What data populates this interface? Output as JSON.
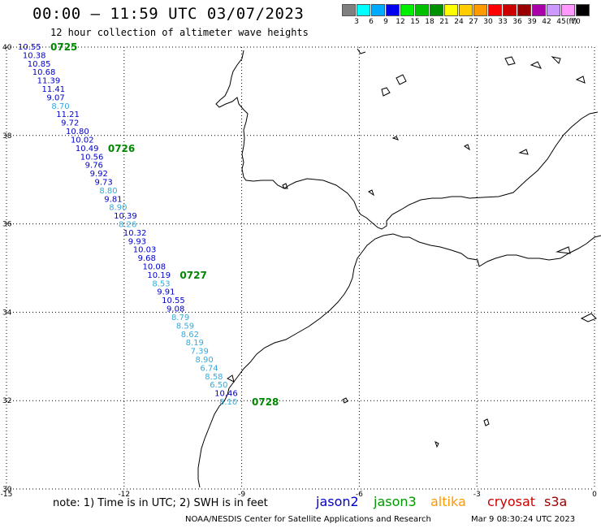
{
  "header": {
    "title": "00:00 – 11:59 UTC 03/07/2023",
    "subtitle": "12 hour collection of altimeter wave heights"
  },
  "legend": {
    "unit": "(ft)",
    "bins": [
      {
        "label": "3",
        "color": "#7f7f7f"
      },
      {
        "label": "6",
        "color": "#00ffff"
      },
      {
        "label": "9",
        "color": "#00aaff"
      },
      {
        "label": "12",
        "color": "#0000ee"
      },
      {
        "label": "15",
        "color": "#00ee00"
      },
      {
        "label": "18",
        "color": "#00c000"
      },
      {
        "label": "21",
        "color": "#009000"
      },
      {
        "label": "24",
        "color": "#ffff00"
      },
      {
        "label": "27",
        "color": "#ffcc00"
      },
      {
        "label": "30",
        "color": "#ff9900"
      },
      {
        "label": "33",
        "color": "#ff0000"
      },
      {
        "label": "36",
        "color": "#cc0000"
      },
      {
        "label": "39",
        "color": "#990000"
      },
      {
        "label": "42",
        "color": "#aa00aa"
      },
      {
        "label": "45",
        "color": "#cc99ff"
      },
      {
        "label": "70",
        "color": "#ff99ff"
      },
      {
        "label": "",
        "color": "#000000"
      }
    ]
  },
  "map_extent": {
    "lon_min": -15,
    "lon_max": 0,
    "lat_min": 30,
    "lat_max": 40
  },
  "axes": {
    "lon_ticks": [
      "-15",
      "-12",
      "-9",
      "-6",
      "-3",
      "0"
    ],
    "lat_ticks": [
      "30",
      "32",
      "34",
      "36",
      "38",
      "40"
    ]
  },
  "track": {
    "wave_heights": [
      {
        "v": "10.55",
        "c": "#0000cc"
      },
      {
        "v": "10.38",
        "c": "#0000cc"
      },
      {
        "v": "10.85",
        "c": "#0000cc"
      },
      {
        "v": "10.68",
        "c": "#0000cc"
      },
      {
        "v": "11.39",
        "c": "#0000cc"
      },
      {
        "v": "11.41",
        "c": "#0000cc"
      },
      {
        "v": "9.07",
        "c": "#0000cc"
      },
      {
        "v": "8.70",
        "c": "#33aadd"
      },
      {
        "v": "11.21",
        "c": "#0000cc"
      },
      {
        "v": "9.72",
        "c": "#0000cc"
      },
      {
        "v": "10.80",
        "c": "#0000cc"
      },
      {
        "v": "10.02",
        "c": "#0000cc"
      },
      {
        "v": "10.49",
        "c": "#0000cc"
      },
      {
        "v": "10.56",
        "c": "#0000cc"
      },
      {
        "v": "9.76",
        "c": "#0000cc"
      },
      {
        "v": "9.92",
        "c": "#0000cc"
      },
      {
        "v": "9.73",
        "c": "#0000cc"
      },
      {
        "v": "8.80",
        "c": "#33aadd"
      },
      {
        "v": "9.81",
        "c": "#0000cc"
      },
      {
        "v": "8.90",
        "c": "#33aadd"
      },
      {
        "v": "10.39",
        "c": "#0000cc"
      },
      {
        "v": "8.26",
        "c": "#33aadd"
      },
      {
        "v": "10.32",
        "c": "#0000cc"
      },
      {
        "v": "9.93",
        "c": "#0000cc"
      },
      {
        "v": "10.03",
        "c": "#0000cc"
      },
      {
        "v": "9.68",
        "c": "#0000cc"
      },
      {
        "v": "10.08",
        "c": "#0000cc"
      },
      {
        "v": "10.19",
        "c": "#0000cc"
      },
      {
        "v": "8.53",
        "c": "#33aadd"
      },
      {
        "v": "9.91",
        "c": "#0000cc"
      },
      {
        "v": "10.55",
        "c": "#0000cc"
      },
      {
        "v": "9.08",
        "c": "#0000cc"
      },
      {
        "v": "8.79",
        "c": "#33aadd"
      },
      {
        "v": "8.59",
        "c": "#33aadd"
      },
      {
        "v": "8.62",
        "c": "#33aadd"
      },
      {
        "v": "8.19",
        "c": "#33aadd"
      },
      {
        "v": "7.39",
        "c": "#33aadd"
      },
      {
        "v": "8.90",
        "c": "#33aadd"
      },
      {
        "v": "6.74",
        "c": "#33aadd"
      },
      {
        "v": "8.58",
        "c": "#33aadd"
      },
      {
        "v": "6.50",
        "c": "#33aadd"
      },
      {
        "v": "10.46",
        "c": "#0000cc"
      },
      {
        "v": "8.10",
        "c": "#33aadd"
      }
    ],
    "pass_times": [
      {
        "label": "0725",
        "at_index": 0
      },
      {
        "label": "0726",
        "at_index": 12
      },
      {
        "label": "0727",
        "at_index": 27
      },
      {
        "label": "0728",
        "at_index": 42
      }
    ],
    "pass_color": "#008800"
  },
  "footer": {
    "note": "note: 1) Time is in UTC; 2) SWH is in feet",
    "satellites": [
      {
        "name": "jason2",
        "color": "#0000cc"
      },
      {
        "name": "jason3",
        "color": "#009900"
      },
      {
        "name": "altika",
        "color": "#ff9900"
      },
      {
        "name": "cryosat",
        "color": "#cc0000"
      },
      {
        "name": "s3a",
        "color": "#990000"
      }
    ],
    "credit": "NOAA/NESDIS Center for Satellite Applications and Research",
    "timestamp": "Mar  9 08:30:24 UTC 2023"
  }
}
